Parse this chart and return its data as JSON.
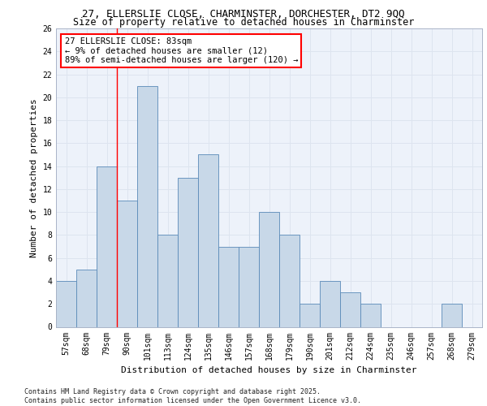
{
  "title_line1": "27, ELLERSLIE CLOSE, CHARMINSTER, DORCHESTER, DT2 9QQ",
  "title_line2": "Size of property relative to detached houses in Charminster",
  "xlabel": "Distribution of detached houses by size in Charminster",
  "ylabel": "Number of detached properties",
  "categories": [
    "57sqm",
    "68sqm",
    "79sqm",
    "90sqm",
    "101sqm",
    "113sqm",
    "124sqm",
    "135sqm",
    "146sqm",
    "157sqm",
    "168sqm",
    "179sqm",
    "190sqm",
    "201sqm",
    "212sqm",
    "224sqm",
    "235sqm",
    "246sqm",
    "257sqm",
    "268sqm",
    "279sqm"
  ],
  "values": [
    4,
    5,
    14,
    11,
    21,
    8,
    13,
    15,
    7,
    7,
    10,
    8,
    2,
    4,
    3,
    2,
    0,
    0,
    0,
    2,
    0
  ],
  "bar_color": "#c8d8e8",
  "bar_edge_color": "#5a8ab8",
  "grid_color": "#dde4ef",
  "background_color": "#edf2fa",
  "red_line_index": 2,
  "annotation_text": "27 ELLERSLIE CLOSE: 83sqm\n← 9% of detached houses are smaller (12)\n89% of semi-detached houses are larger (120) →",
  "annotation_box_color": "white",
  "annotation_box_edge": "red",
  "footer_text": "Contains HM Land Registry data © Crown copyright and database right 2025.\nContains public sector information licensed under the Open Government Licence v3.0.",
  "ylim": [
    0,
    26
  ],
  "yticks": [
    0,
    2,
    4,
    6,
    8,
    10,
    12,
    14,
    16,
    18,
    20,
    22,
    24,
    26
  ],
  "title_fontsize": 9,
  "subtitle_fontsize": 8.5,
  "ylabel_fontsize": 8,
  "xlabel_fontsize": 8,
  "tick_fontsize": 7,
  "footer_fontsize": 6,
  "annotation_fontsize": 7.5
}
